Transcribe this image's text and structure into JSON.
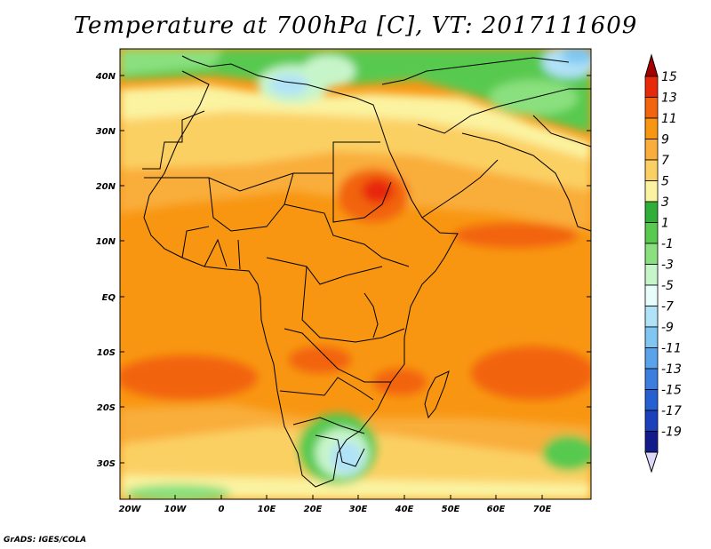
{
  "title": "Temperature at 700hPa [C], VT: 2017111609",
  "footer": "GrADS: IGES/COLA",
  "map": {
    "type": "filled-contour-map",
    "variable": "Temperature at 700hPa",
    "units": "C",
    "valid_time": "2017111609",
    "lon_range": [
      -23,
      80
    ],
    "lat_range": [
      -37,
      45
    ],
    "lon_ticks": [
      "20W",
      "10W",
      "0",
      "10E",
      "20E",
      "30E",
      "40E",
      "50E",
      "60E",
      "70E"
    ],
    "lat_ticks": [
      "40N",
      "30N",
      "20N",
      "10N",
      "EQ",
      "10S",
      "20S",
      "30S"
    ]
  },
  "colorbar": {
    "labels": [
      "15",
      "13",
      "11",
      "9",
      "7",
      "5",
      "3",
      "1",
      "-1",
      "-3",
      "-5",
      "-7",
      "-9",
      "-11",
      "-13",
      "-15",
      "-17",
      "-19"
    ],
    "colors": [
      "#a50000",
      "#e8280a",
      "#f2640e",
      "#f89612",
      "#f9ad3a",
      "#fbd063",
      "#fbf3a0",
      "#2fae38",
      "#59c950",
      "#8ae07e",
      "#c7f5ca",
      "#e8fcfc",
      "#b0e2f8",
      "#7fc7f2",
      "#5aa2ea",
      "#3c7ee0",
      "#2560d2",
      "#1a40bb",
      "#111c8a",
      "#ddd6f7"
    ]
  }
}
